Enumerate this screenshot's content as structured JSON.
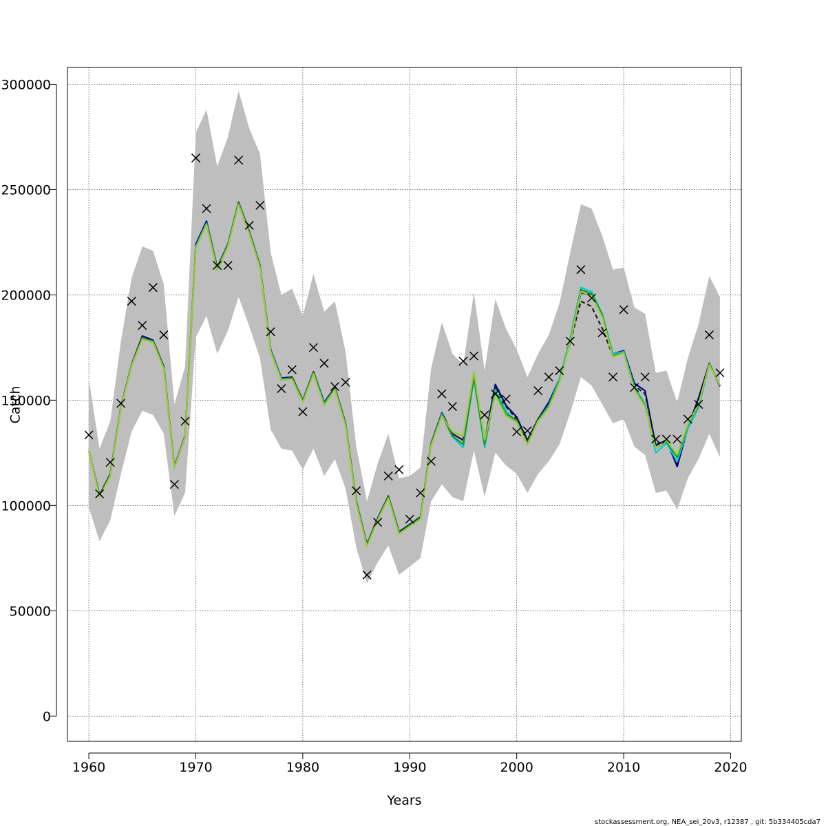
{
  "chart_data": {
    "type": "line",
    "title": "",
    "xlabel": "Years",
    "ylabel": "Catch",
    "xlim": [
      1958,
      2021
    ],
    "ylim": [
      -12000,
      308000
    ],
    "x_ticks": [
      1960,
      1970,
      1980,
      1990,
      2000,
      2010,
      2020
    ],
    "y_ticks": [
      0,
      50000,
      100000,
      150000,
      200000,
      250000,
      300000
    ],
    "x_tick_labels": [
      "1960",
      "1970",
      "1980",
      "1990",
      "2000",
      "2010",
      "2020"
    ],
    "y_tick_labels": [
      "0",
      "50000",
      "100000",
      "150000",
      "200000",
      "250000",
      "300000"
    ],
    "grid": true,
    "footer": "stockassessment.org, NEA_sei_20v3, r12387 , git: 5b334405cda7",
    "colors": {
      "band": "#bebebe",
      "observed": "#000000",
      "series": [
        "#00008b",
        "#1f1f1f",
        "#00ced1",
        "#228b22",
        "#9acd32"
      ]
    },
    "years": [
      1960,
      1961,
      1962,
      1963,
      1964,
      1965,
      1966,
      1967,
      1968,
      1969,
      1970,
      1971,
      1972,
      1973,
      1974,
      1975,
      1976,
      1977,
      1978,
      1979,
      1980,
      1981,
      1982,
      1983,
      1984,
      1985,
      1986,
      1987,
      1988,
      1989,
      1990,
      1991,
      1992,
      1993,
      1994,
      1995,
      1996,
      1997,
      1998,
      1999,
      2000,
      2001,
      2002,
      2003,
      2004,
      2005,
      2006,
      2007,
      2008,
      2009,
      2010,
      2011,
      2012,
      2013,
      2014,
      2015,
      2016,
      2017,
      2018,
      2019
    ],
    "band_upper": [
      160000,
      127000,
      140000,
      178000,
      208000,
      223000,
      221000,
      205000,
      148000,
      166000,
      277000,
      288000,
      261000,
      275000,
      297000,
      279000,
      267000,
      220000,
      200000,
      203000,
      190000,
      210000,
      192000,
      197000,
      173000,
      128000,
      102000,
      120000,
      134000,
      113000,
      114000,
      118000,
      165000,
      187000,
      172000,
      167000,
      201000,
      164000,
      198000,
      184000,
      174000,
      161000,
      172000,
      181000,
      196000,
      220000,
      243000,
      241000,
      228000,
      212000,
      213000,
      194000,
      191000,
      163000,
      164000,
      149000,
      170000,
      186000,
      209000,
      199000
    ],
    "band_lower": [
      99000,
      83000,
      93000,
      115000,
      135000,
      145000,
      143000,
      134000,
      95000,
      106000,
      180000,
      190000,
      172000,
      183000,
      199000,
      185000,
      170000,
      136000,
      127000,
      126000,
      117000,
      127000,
      114000,
      122000,
      108000,
      80000,
      63000,
      73000,
      81000,
      67000,
      71000,
      75000,
      102000,
      110000,
      104000,
      102000,
      126000,
      104000,
      125000,
      119000,
      115000,
      106000,
      115000,
      121000,
      129000,
      144000,
      161000,
      157000,
      148000,
      139000,
      141000,
      128000,
      124000,
      106000,
      107000,
      98000,
      113000,
      122000,
      134000,
      123000
    ],
    "observed": [
      133500,
      105500,
      120500,
      148500,
      197000,
      185500,
      203500,
      181000,
      110000,
      140000,
      265000,
      241000,
      214000,
      214000,
      264000,
      233000,
      242500,
      182500,
      155500,
      164500,
      144500,
      175000,
      167500,
      156500,
      158500,
      107000,
      67000,
      92000,
      114000,
      117000,
      93500,
      106000,
      121000,
      153000,
      147000,
      168500,
      171000,
      143000,
      153000,
      150500,
      135000,
      135500,
      154500,
      161000,
      164000,
      178000,
      212000,
      198500,
      182000,
      161000,
      193000,
      156000,
      161000,
      131500,
      131500,
      131500,
      141000,
      148000,
      181000,
      163000
    ],
    "series": [
      {
        "values": [
          126000,
          105000,
          115000,
          147000,
          167000,
          180500,
          178500,
          166000,
          118500,
          133000,
          224000,
          235000,
          213000,
          224000,
          244000,
          230000,
          214000,
          174000,
          160500,
          161000,
          150000,
          163500,
          149000,
          156000,
          139000,
          102000,
          81500,
          94000,
          104500,
          87500,
          91000,
          94500,
          129500,
          144000,
          134000,
          131000,
          162000,
          130500,
          157500,
          147500,
          142000,
          131000,
          141000,
          149000,
          160000,
          178000,
          201000,
          200000,
          190000,
          172000,
          173500,
          158000,
          154500,
          128500,
          131000,
          118500,
          137000,
          151000,
          167500,
          156500
        ]
      },
      {
        "values": [
          126000,
          105000,
          115000,
          147000,
          167000,
          180000,
          178000,
          166000,
          118500,
          133000,
          223000,
          234000,
          213000,
          224000,
          244000,
          230000,
          214000,
          174000,
          160000,
          161000,
          149500,
          163500,
          148500,
          156000,
          139000,
          102000,
          81500,
          94000,
          104500,
          87500,
          91000,
          94500,
          129000,
          143500,
          134000,
          131000,
          162000,
          130500,
          156500,
          147000,
          141000,
          130500,
          141000,
          148000,
          159500,
          177500,
          197000,
          194500,
          184000,
          171000,
          173000,
          157000,
          153000,
          129000,
          131000,
          120000,
          137000,
          150000,
          167500,
          157000
        ]
      },
      {
        "values": [
          126000,
          104500,
          114500,
          146500,
          166500,
          179500,
          178000,
          165500,
          118000,
          132500,
          223000,
          234000,
          212500,
          223500,
          243500,
          229500,
          213500,
          173500,
          160000,
          160500,
          149500,
          163000,
          148500,
          155500,
          138500,
          101500,
          81000,
          93500,
          104000,
          87000,
          90500,
          94000,
          129000,
          143500,
          132500,
          127500,
          160000,
          127500,
          155000,
          145000,
          139500,
          129500,
          140500,
          147500,
          160000,
          179500,
          203500,
          201500,
          191000,
          172000,
          173000,
          156500,
          148000,
          125000,
          129500,
          121000,
          136500,
          146500,
          167000,
          157000
        ]
      },
      {
        "values": [
          126000,
          104500,
          114500,
          146500,
          166500,
          179500,
          178000,
          165500,
          118000,
          132500,
          222500,
          233500,
          212000,
          223500,
          243500,
          229500,
          213000,
          173000,
          159500,
          160500,
          149500,
          163000,
          148000,
          155500,
          138500,
          101500,
          81000,
          93500,
          104000,
          87000,
          90500,
          94000,
          129000,
          143000,
          133000,
          129000,
          161000,
          129000,
          153500,
          143500,
          140500,
          129500,
          140500,
          147000,
          159000,
          178500,
          202500,
          200500,
          190500,
          171000,
          172500,
          155500,
          147500,
          127000,
          130500,
          123000,
          138000,
          147500,
          167000,
          157000
        ]
      },
      {
        "values": [
          126000,
          104000,
          114000,
          146500,
          166500,
          179000,
          177500,
          165000,
          118000,
          132500,
          222500,
          233500,
          211500,
          223000,
          243000,
          229000,
          213000,
          173000,
          159500,
          160000,
          149000,
          162500,
          147500,
          155000,
          138000,
          101000,
          80500,
          93000,
          103500,
          86500,
          90000,
          93500,
          128500,
          142500,
          135000,
          133000,
          163500,
          131000,
          152500,
          142500,
          139500,
          129000,
          140000,
          146500,
          158500,
          178000,
          201500,
          199500,
          189500,
          170500,
          172500,
          155000,
          147000,
          127000,
          131000,
          124000,
          138500,
          148000,
          167000,
          157000
        ]
      }
    ]
  }
}
